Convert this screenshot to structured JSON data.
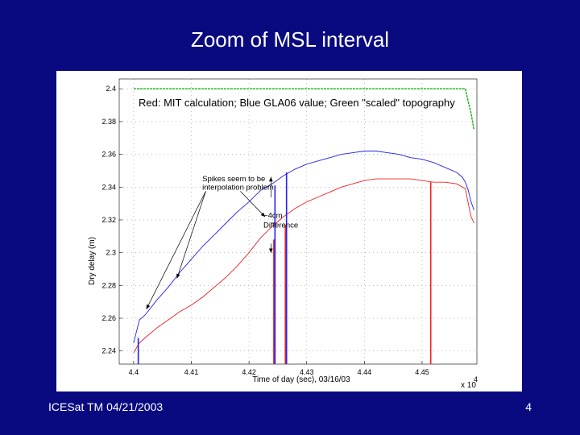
{
  "slide": {
    "title": "Zoom of MSL interval",
    "footer_left": "ICESat TM 04/21/2003",
    "page_number": "4"
  },
  "colors": {
    "background": "#0a0a80",
    "red": "#ee2020",
    "blue": "#2020ee",
    "green": "#10b010",
    "gridline": "#9a9a9a"
  },
  "chart_data": {
    "type": "line",
    "title": "Red: MIT calculation; Blue GLA06 value; Green \"scaled\" topography",
    "xlabel": "Time of day (sec), 03/16/03",
    "ylabel": "Dry delay (m)",
    "x_exponent_label": "x 10",
    "x_exponent_power": "4",
    "xlim": [
      4.3975,
      4.4595
    ],
    "ylim": [
      2.232,
      2.406
    ],
    "x_ticks": [
      4.4,
      4.41,
      4.42,
      4.43,
      4.44,
      4.45
    ],
    "x_tick_labels": [
      "4.4",
      "4.41",
      "4.42",
      "4.43",
      "4.44",
      "4.45"
    ],
    "y_ticks": [
      2.24,
      2.26,
      2.28,
      2.3,
      2.32,
      2.34,
      2.36,
      2.38,
      2.4
    ],
    "y_tick_labels": [
      "2.24",
      "2.26",
      "2.28",
      "2.3",
      "2.32",
      "2.34",
      "2.36",
      "2.38",
      "2.4"
    ],
    "grid": "dotted",
    "series": [
      {
        "name": "Red: MIT calculation",
        "color": "#ee2020",
        "x": [
          4.4,
          4.401,
          4.402,
          4.404,
          4.406,
          4.408,
          4.41,
          4.412,
          4.414,
          4.416,
          4.418,
          4.42,
          4.422,
          4.424,
          4.426,
          4.428,
          4.43,
          4.432,
          4.434,
          4.436,
          4.438,
          4.44,
          4.442,
          4.444,
          4.446,
          4.448,
          4.45,
          4.452,
          4.454,
          4.456,
          4.4575,
          4.458,
          4.4585,
          4.459
        ],
        "y": [
          2.239,
          2.245,
          2.248,
          2.254,
          2.259,
          2.264,
          2.268,
          2.273,
          2.279,
          2.285,
          2.292,
          2.3,
          2.309,
          2.316,
          2.322,
          2.327,
          2.331,
          2.334,
          2.337,
          2.34,
          2.342,
          2.344,
          2.345,
          2.345,
          2.345,
          2.345,
          2.344,
          2.343,
          2.343,
          2.342,
          2.339,
          2.33,
          2.322,
          2.318
        ]
      },
      {
        "name": "Blue GLA06 value",
        "color": "#2020ee",
        "x": [
          4.4,
          4.4005,
          4.401,
          4.402,
          4.404,
          4.406,
          4.408,
          4.41,
          4.412,
          4.414,
          4.416,
          4.418,
          4.42,
          4.422,
          4.424,
          4.426,
          4.428,
          4.43,
          4.432,
          4.434,
          4.436,
          4.438,
          4.44,
          4.442,
          4.444,
          4.446,
          4.448,
          4.45,
          4.452,
          4.454,
          4.456,
          4.457,
          4.4575,
          4.458,
          4.4585,
          4.459
        ],
        "y": [
          2.245,
          2.252,
          2.259,
          2.262,
          2.271,
          2.279,
          2.288,
          2.296,
          2.304,
          2.311,
          2.318,
          2.325,
          2.331,
          2.338,
          2.342,
          2.347,
          2.351,
          2.354,
          2.356,
          2.358,
          2.36,
          2.361,
          2.362,
          2.362,
          2.361,
          2.36,
          2.358,
          2.357,
          2.355,
          2.352,
          2.349,
          2.346,
          2.343,
          2.338,
          2.331,
          2.326
        ]
      },
      {
        "name": "Green \"scaled\" topography",
        "color": "#10b010",
        "x": [
          4.4,
          4.41,
          4.42,
          4.43,
          4.44,
          4.45,
          4.4575,
          4.458,
          4.4585,
          4.459
        ],
        "y": [
          2.4,
          2.4,
          2.4,
          2.4,
          2.4,
          2.4,
          2.4,
          2.392,
          2.385,
          2.375
        ]
      }
    ],
    "spikes": [
      {
        "series": "red",
        "x": 4.4243,
        "y_top": 2.308,
        "y_bottom": 2.232
      },
      {
        "series": "red",
        "x": 4.4263,
        "y_top": 2.317,
        "y_bottom": 2.232
      },
      {
        "series": "blue",
        "x": 4.4245,
        "y_top": 2.341,
        "y_bottom": 2.232
      },
      {
        "series": "blue",
        "x": 4.4265,
        "y_top": 2.349,
        "y_bottom": 2.232
      },
      {
        "series": "red",
        "x": 4.4515,
        "y_top": 2.343,
        "y_bottom": 2.232
      },
      {
        "series": "blue",
        "x": 4.4008,
        "y_top": 2.248,
        "y_bottom": 2.232
      }
    ],
    "annotations": [
      {
        "text": "Spikes seem to be",
        "x": 4.4119,
        "y": 2.3435
      },
      {
        "text": "interpolation problem",
        "x": 4.4119,
        "y": 2.3385
      },
      {
        "text": "~4cm",
        "x": 4.4225,
        "y": 2.3212
      },
      {
        "text": "Difference",
        "x": 4.4225,
        "y": 2.3152
      }
    ]
  }
}
